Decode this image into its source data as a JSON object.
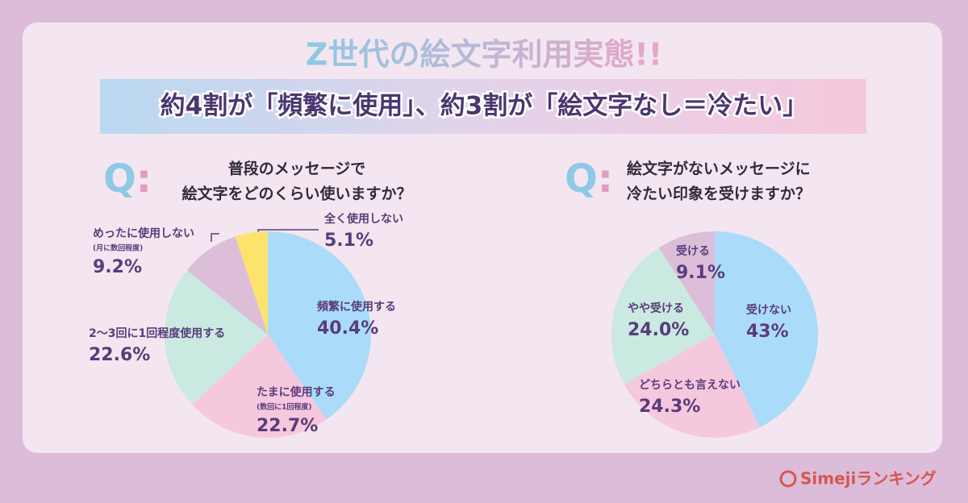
{
  "header": {
    "title": "Z世代の絵文字利用実態!!",
    "subtitle": "約4割が「頻繁に使用」、約3割が「絵文字なし＝冷たい」"
  },
  "brand": "Simejiランキング",
  "chart_data": [
    {
      "type": "pie",
      "q_label": "Q:",
      "title": [
        "普段のメッセージで",
        "絵文字をどのくらい使いますか？"
      ],
      "categories": [
        "頻繁に使用する",
        "たまに使用する",
        "2〜3回に1回程度使用する",
        "めったに使用しない",
        "全く使用しない"
      ],
      "category_notes": [
        null,
        "(数回に1回程度)",
        null,
        "(月に数回程度)",
        null
      ],
      "values": [
        40.4,
        22.7,
        22.6,
        9.2,
        5.1
      ],
      "value_labels": [
        "40.4%",
        "22.7%",
        "22.6%",
        "9.2%",
        "5.1%"
      ],
      "colors": [
        "#aadcf9",
        "#f6c8de",
        "#c9e9e1",
        "#dcbed9",
        "#fde36b"
      ]
    },
    {
      "type": "pie",
      "q_label": "Q:",
      "title": [
        "絵文字がないメッセージに",
        "冷たい印象を受けますか？"
      ],
      "categories": [
        "受けない",
        "どちらとも言えない",
        "やや受ける",
        "受ける"
      ],
      "category_notes": [
        null,
        null,
        null,
        null
      ],
      "values": [
        43,
        24.3,
        24.0,
        9.1
      ],
      "value_labels": [
        "43%",
        "24.3%",
        "24.0%",
        "9.1%"
      ],
      "colors": [
        "#aadcf9",
        "#f6c8de",
        "#c9e9e1",
        "#dcbed9"
      ]
    }
  ]
}
